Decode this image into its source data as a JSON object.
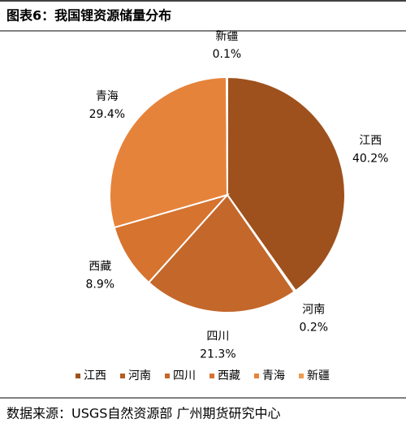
{
  "chart_data": {
    "type": "pie",
    "title": "图表6：我国锂资源储量分布",
    "source": "数据来源：USGS自然资源部 广州期货研究中心",
    "categories": [
      "江西",
      "河南",
      "四川",
      "西藏",
      "青海",
      "新疆"
    ],
    "values": [
      40.2,
      0.2,
      21.3,
      8.9,
      29.4,
      0.1
    ],
    "value_labels": [
      "40.2%",
      "0.2%",
      "21.3%",
      "8.9%",
      "29.4%",
      "0.1%"
    ],
    "colors": [
      "#9e511d",
      "#b65a24",
      "#c4672b",
      "#d5732f",
      "#e6833a",
      "#ef9a52"
    ],
    "legend": "bottom"
  }
}
